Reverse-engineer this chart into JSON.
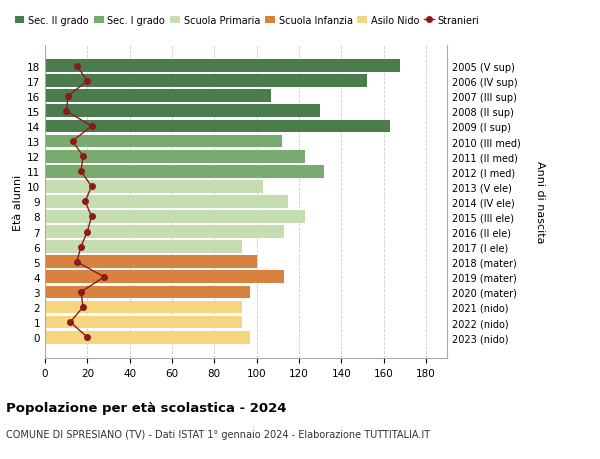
{
  "ages": [
    18,
    17,
    16,
    15,
    14,
    13,
    12,
    11,
    10,
    9,
    8,
    7,
    6,
    5,
    4,
    3,
    2,
    1,
    0
  ],
  "bar_values": [
    168,
    152,
    107,
    130,
    163,
    112,
    123,
    132,
    103,
    115,
    123,
    113,
    93,
    100,
    113,
    97,
    93,
    93,
    97
  ],
  "bar_colors": [
    "#4a7c4e",
    "#4a7c4e",
    "#4a7c4e",
    "#4a7c4e",
    "#4a7c4e",
    "#7aab6e",
    "#7aab6e",
    "#7aab6e",
    "#c5ddb0",
    "#c5ddb0",
    "#c5ddb0",
    "#c5ddb0",
    "#c5ddb0",
    "#d9813e",
    "#d9813e",
    "#d9813e",
    "#f5d580",
    "#f5d580",
    "#f5d580"
  ],
  "stranieri_values": [
    15,
    20,
    11,
    10,
    22,
    13,
    18,
    17,
    22,
    19,
    22,
    20,
    17,
    15,
    28,
    17,
    18,
    12,
    20
  ],
  "right_labels": [
    "2005 (V sup)",
    "2006 (IV sup)",
    "2007 (III sup)",
    "2008 (II sup)",
    "2009 (I sup)",
    "2010 (III med)",
    "2011 (II med)",
    "2012 (I med)",
    "2013 (V ele)",
    "2014 (IV ele)",
    "2015 (III ele)",
    "2016 (II ele)",
    "2017 (I ele)",
    "2018 (mater)",
    "2019 (mater)",
    "2020 (mater)",
    "2021 (nido)",
    "2022 (nido)",
    "2023 (nido)"
  ],
  "legend_labels": [
    "Sec. II grado",
    "Sec. I grado",
    "Scuola Primaria",
    "Scuola Infanzia",
    "Asilo Nido",
    "Stranieri"
  ],
  "legend_colors": [
    "#4a7c4e",
    "#7aab6e",
    "#c5ddb0",
    "#d9813e",
    "#f5d580",
    "#8b1a1a"
  ],
  "ylabel_left": "Età alunni",
  "ylabel_right": "Anni di nascita",
  "title": "Popolazione per età scolastica - 2024",
  "subtitle": "COMUNE DI SPRESIANO (TV) - Dati ISTAT 1° gennaio 2024 - Elaborazione TUTTITALIA.IT",
  "xlim": [
    0,
    190
  ],
  "xticks": [
    0,
    20,
    40,
    60,
    80,
    100,
    120,
    140,
    160,
    180
  ],
  "bg_color": "#ffffff",
  "grid_color": "#cccccc"
}
